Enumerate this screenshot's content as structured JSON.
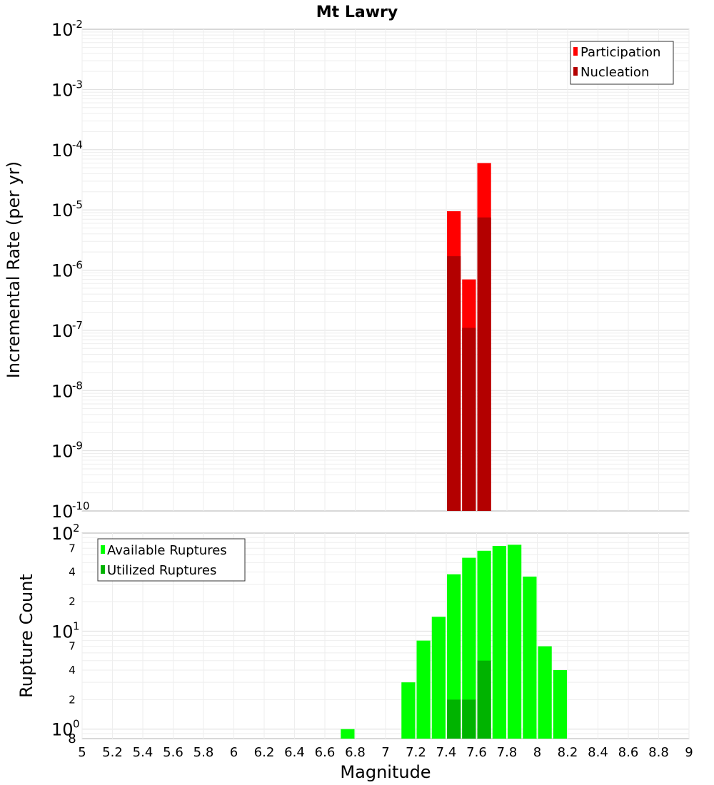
{
  "chart_data": [
    {
      "type": "bar",
      "title": "Mt Lawry",
      "ylabel": "Incremental Rate (per yr)",
      "yscale": "log",
      "ylim": [
        1e-10,
        0.01
      ],
      "y_tick_labels": [
        {
          "base": "10",
          "exp": "-10"
        },
        {
          "base": "10",
          "exp": "-9"
        },
        {
          "base": "10",
          "exp": "-8"
        },
        {
          "base": "10",
          "exp": "-7"
        },
        {
          "base": "10",
          "exp": "-6"
        },
        {
          "base": "10",
          "exp": "-5"
        },
        {
          "base": "10",
          "exp": "-4"
        },
        {
          "base": "10",
          "exp": "-3"
        },
        {
          "base": "10",
          "exp": "-2"
        }
      ],
      "legend_position": "top-right",
      "series": [
        {
          "name": "Participation",
          "color": "#ff0000",
          "x": [
            7.45,
            7.55,
            7.65
          ],
          "values": [
            9.5e-06,
            7e-07,
            6e-05
          ]
        },
        {
          "name": "Nucleation",
          "color": "#b30000",
          "x": [
            7.45,
            7.55,
            7.65
          ],
          "values": [
            1.7e-06,
            1.1e-07,
            7.5e-06
          ]
        }
      ]
    },
    {
      "type": "bar",
      "ylabel": "Rupture Count",
      "yscale": "log",
      "ylim": [
        0.8,
        100
      ],
      "y_major_ticks": [
        {
          "base": "10",
          "exp": "0",
          "value": 1
        },
        {
          "base": "10",
          "exp": "1",
          "value": 10
        },
        {
          "base": "10",
          "exp": "2",
          "value": 100
        }
      ],
      "y_minor_ticks": [
        {
          "label": "8",
          "value": 0.8
        },
        {
          "label": "2",
          "value": 2
        },
        {
          "label": "4",
          "value": 4
        },
        {
          "label": "7",
          "value": 7
        },
        {
          "label": "2",
          "value": 20
        },
        {
          "label": "4",
          "value": 40
        },
        {
          "label": "7",
          "value": 70
        }
      ],
      "legend_position": "top-left",
      "series": [
        {
          "name": "Available Ruptures",
          "color": "#00ff00",
          "x": [
            6.75,
            7.15,
            7.25,
            7.35,
            7.45,
            7.55,
            7.65,
            7.75,
            7.85,
            7.95,
            8.05,
            8.15
          ],
          "values": [
            1,
            3,
            8,
            14,
            38,
            56,
            66,
            74,
            76,
            36,
            7,
            4
          ]
        },
        {
          "name": "Utilized Ruptures",
          "color": "#00b300",
          "x": [
            7.45,
            7.55,
            7.65
          ],
          "values": [
            2,
            2,
            5
          ]
        }
      ]
    }
  ],
  "x_axis": {
    "label": "Magnitude",
    "range": [
      5,
      9
    ],
    "ticks": [
      5,
      5.2,
      5.4,
      5.6,
      5.8,
      6,
      6.2,
      6.4,
      6.6,
      6.8,
      7,
      7.2,
      7.4,
      7.6,
      7.8,
      8,
      8.2,
      8.4,
      8.6,
      8.8,
      9
    ],
    "tick_labels": [
      "5",
      "5.2",
      "5.4",
      "5.6",
      "5.8",
      "6",
      "6.2",
      "6.4",
      "6.6",
      "6.8",
      "7",
      "7.2",
      "7.4",
      "7.6",
      "7.8",
      "8",
      "8.2",
      "8.4",
      "8.6",
      "8.8",
      "9"
    ],
    "bin_width": 0.1
  }
}
